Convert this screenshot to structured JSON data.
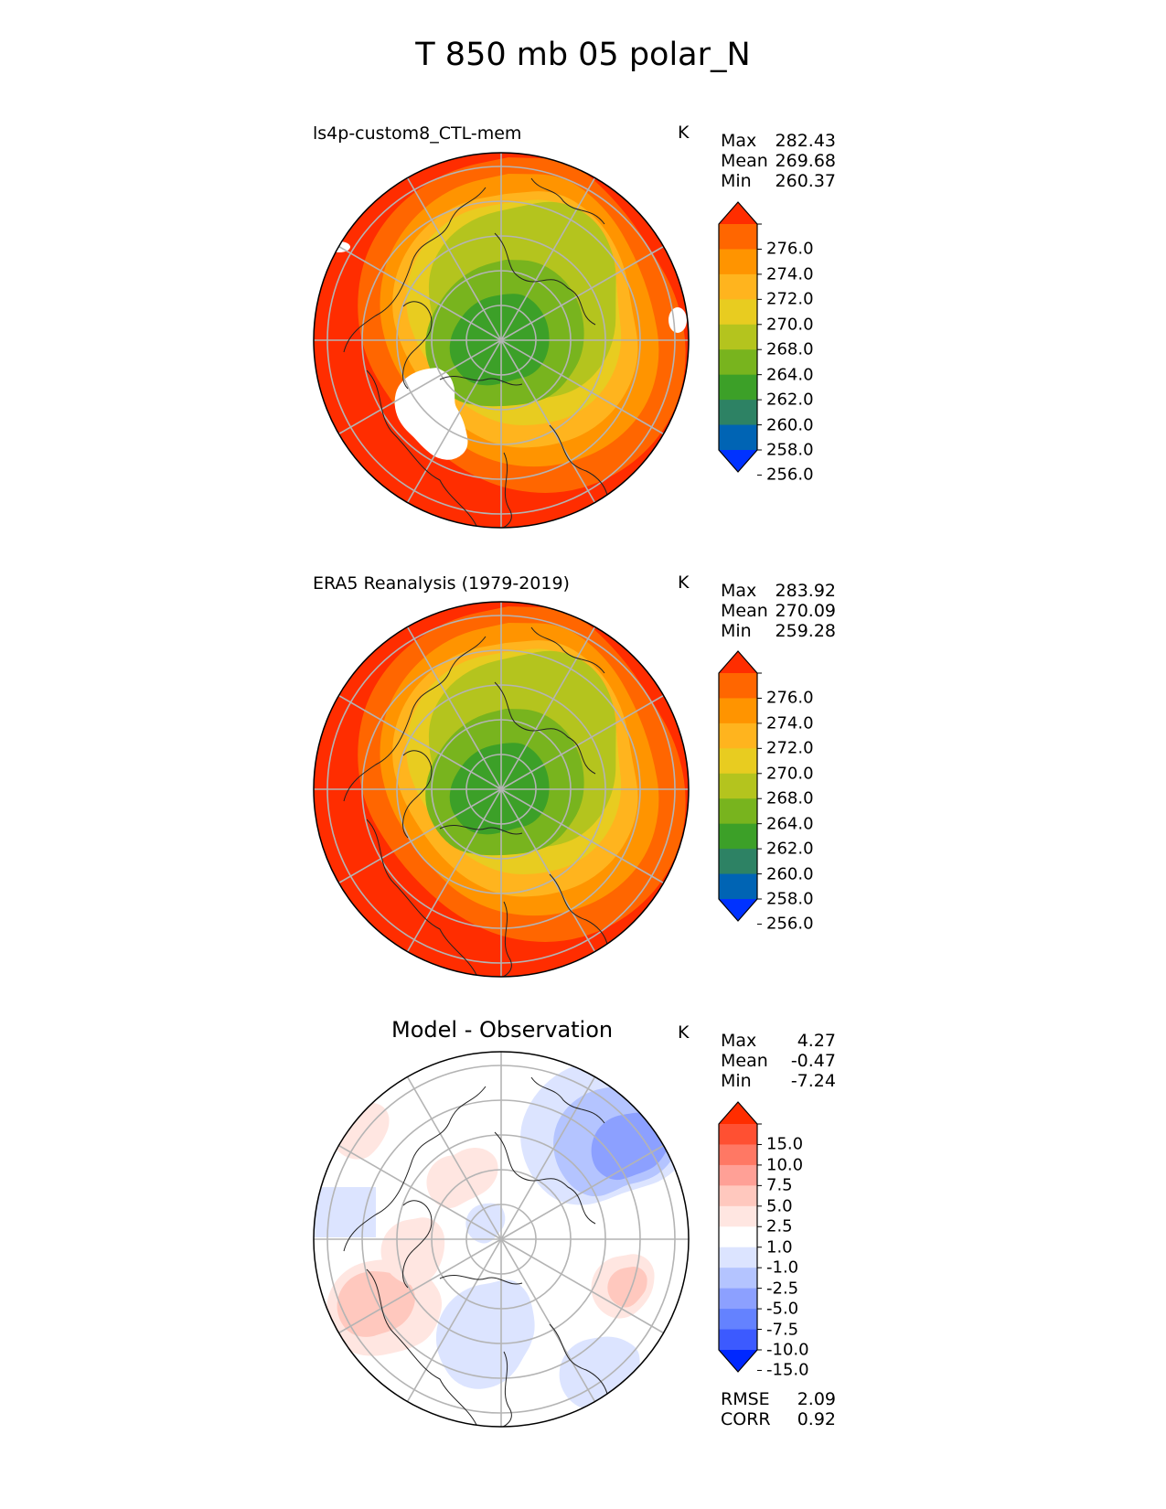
{
  "figure": {
    "title": "T 850 mb 05 polar_N"
  },
  "panels": [
    {
      "id": "model",
      "title": "ls4p-custom8_CTL-mem",
      "unit": "K",
      "stats": [
        {
          "label": "Max",
          "value": "282.43"
        },
        {
          "label": "Mean",
          "value": "269.68"
        },
        {
          "label": "Min",
          "value": "260.37"
        }
      ],
      "colorbar": {
        "labels": [
          "276.0",
          "274.0",
          "272.0",
          "270.0",
          "268.0",
          "264.0",
          "262.0",
          "260.0",
          "258.0",
          "256.0"
        ],
        "colors": [
          "#ff2d00",
          "#ff6600",
          "#ff9400",
          "#ffb41e",
          "#e8cc20",
          "#b4c41e",
          "#78b41e",
          "#3ca028",
          "#2d8264",
          "#0064b4",
          "#0032ff"
        ]
      }
    },
    {
      "id": "obs",
      "title": "ERA5 Reanalysis (1979-2019)",
      "unit": "K",
      "stats": [
        {
          "label": "Max",
          "value": "283.92"
        },
        {
          "label": "Mean",
          "value": "270.09"
        },
        {
          "label": "Min",
          "value": "259.28"
        }
      ],
      "colorbar": {
        "labels": [
          "276.0",
          "274.0",
          "272.0",
          "270.0",
          "268.0",
          "264.0",
          "262.0",
          "260.0",
          "258.0",
          "256.0"
        ],
        "colors": [
          "#ff2d00",
          "#ff6600",
          "#ff9400",
          "#ffb41e",
          "#e8cc20",
          "#b4c41e",
          "#78b41e",
          "#3ca028",
          "#2d8264",
          "#0064b4",
          "#0032ff"
        ]
      }
    },
    {
      "id": "diff",
      "title": "Model - Observation",
      "unit": "K",
      "stats": [
        {
          "label": "Max",
          "value": "4.27"
        },
        {
          "label": "Mean",
          "value": "-0.47"
        },
        {
          "label": "Min",
          "value": "-7.24"
        }
      ],
      "extra_stats": [
        {
          "label": "RMSE",
          "value": "2.09"
        },
        {
          "label": "CORR",
          "value": "0.92"
        }
      ],
      "colorbar": {
        "labels": [
          "15.0",
          "10.0",
          "7.5",
          "5.0",
          "2.5",
          "1.0",
          "-1.0",
          "-2.5",
          "-5.0",
          "-7.5",
          "-10.0",
          "-15.0"
        ],
        "colors": [
          "#ff2d00",
          "#ff5032",
          "#ff7864",
          "#ffa096",
          "#ffc8be",
          "#ffe6e1",
          "#ffffff",
          "#dce4ff",
          "#b4c4ff",
          "#8ca0ff",
          "#6482ff",
          "#3c5aff",
          "#0028ff"
        ]
      }
    }
  ],
  "chart_data": [
    {
      "type": "heatmap",
      "projection": "north polar stereographic",
      "title": "ls4p-custom8_CTL-mem",
      "variable": "T 850 mb",
      "units": "K",
      "levels": [
        256,
        258,
        260,
        262,
        264,
        268,
        270,
        272,
        274,
        276
      ],
      "max": 282.43,
      "mean": 269.68,
      "min": 260.37
    },
    {
      "type": "heatmap",
      "projection": "north polar stereographic",
      "title": "ERA5 Reanalysis (1979-2019)",
      "variable": "T 850 mb",
      "units": "K",
      "levels": [
        256,
        258,
        260,
        262,
        264,
        268,
        270,
        272,
        274,
        276
      ],
      "max": 283.92,
      "mean": 270.09,
      "min": 259.28
    },
    {
      "type": "heatmap",
      "projection": "north polar stereographic",
      "title": "Model - Observation",
      "units": "K",
      "levels": [
        -15,
        -10,
        -7.5,
        -5,
        -2.5,
        -1,
        1,
        2.5,
        5,
        7.5,
        10,
        15
      ],
      "max": 4.27,
      "mean": -0.47,
      "min": -7.24,
      "rmse": 2.09,
      "corr": 0.92
    }
  ]
}
